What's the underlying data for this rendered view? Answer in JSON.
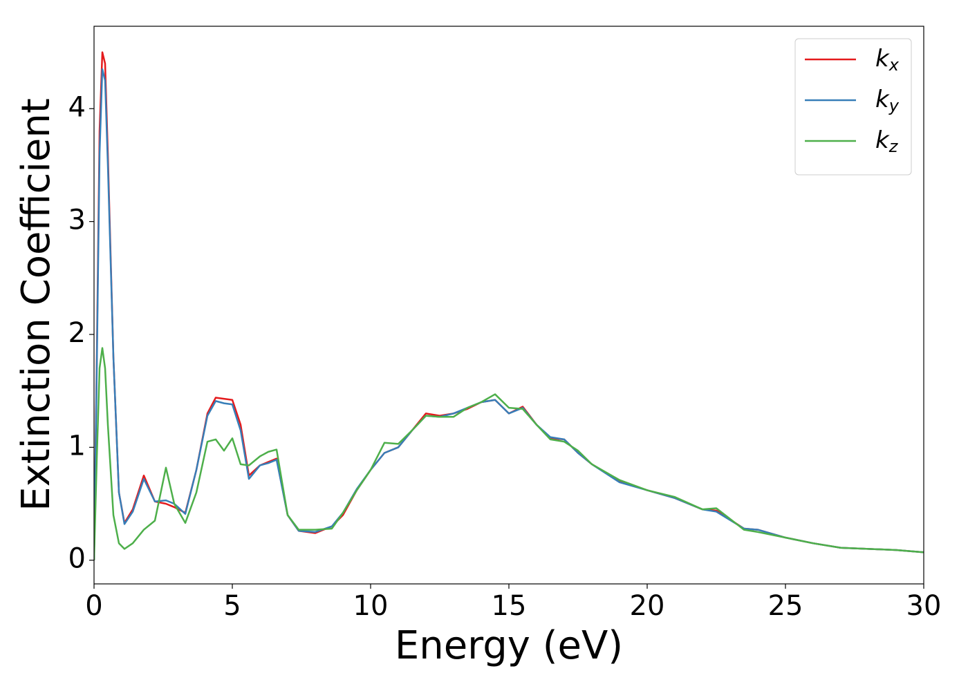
{
  "chart_data": {
    "type": "line",
    "xlabel": "Energy (eV)",
    "ylabel": "Extinction Coefficient",
    "x": [
      0,
      0.1,
      0.2,
      0.3,
      0.4,
      0.5,
      0.7,
      0.9,
      1.1,
      1.4,
      1.8,
      2.2,
      2.6,
      2.9,
      3.3,
      3.7,
      4.1,
      4.4,
      4.7,
      5.0,
      5.3,
      5.6,
      6.0,
      6.3,
      6.6,
      7.0,
      7.4,
      8.0,
      8.6,
      9.0,
      9.5,
      10.0,
      10.5,
      11.0,
      11.5,
      12.0,
      12.5,
      13.0,
      13.5,
      14.0,
      14.5,
      15.0,
      15.5,
      16.0,
      16.5,
      17.0,
      17.5,
      18.0,
      19.0,
      20.0,
      21.0,
      22.0,
      22.5,
      23.5,
      24.0,
      25.0,
      26.0,
      27.0,
      28.0,
      29.0,
      30.0
    ],
    "series": [
      {
        "name": "kx",
        "color": "#e41a1c",
        "values": [
          0,
          1.8,
          3.8,
          4.5,
          4.4,
          3.6,
          1.8,
          0.6,
          0.33,
          0.45,
          0.75,
          0.52,
          0.5,
          0.47,
          0.42,
          0.8,
          1.3,
          1.44,
          1.43,
          1.42,
          1.2,
          0.75,
          0.84,
          0.87,
          0.9,
          0.4,
          0.26,
          0.24,
          0.3,
          0.4,
          0.62,
          0.8,
          0.95,
          1.0,
          1.15,
          1.3,
          1.28,
          1.3,
          1.34,
          1.4,
          1.42,
          1.3,
          1.36,
          1.2,
          1.08,
          1.07,
          0.95,
          0.85,
          0.7,
          0.62,
          0.55,
          0.45,
          0.44,
          0.28,
          0.27,
          0.2,
          0.15,
          0.11,
          0.1,
          0.09,
          0.07
        ]
      },
      {
        "name": "ky",
        "color": "#377eb8",
        "values": [
          0,
          1.7,
          3.6,
          4.35,
          4.25,
          3.5,
          1.8,
          0.6,
          0.32,
          0.43,
          0.72,
          0.52,
          0.53,
          0.5,
          0.41,
          0.8,
          1.28,
          1.41,
          1.39,
          1.38,
          1.15,
          0.72,
          0.84,
          0.86,
          0.89,
          0.4,
          0.26,
          0.25,
          0.3,
          0.42,
          0.63,
          0.8,
          0.95,
          1.0,
          1.15,
          1.28,
          1.27,
          1.3,
          1.35,
          1.4,
          1.42,
          1.3,
          1.35,
          1.2,
          1.09,
          1.07,
          0.95,
          0.85,
          0.69,
          0.62,
          0.55,
          0.45,
          0.43,
          0.28,
          0.27,
          0.2,
          0.15,
          0.11,
          0.1,
          0.09,
          0.07
        ]
      },
      {
        "name": "kz",
        "color": "#4daf4a",
        "values": [
          0,
          0.9,
          1.7,
          1.88,
          1.7,
          1.2,
          0.4,
          0.15,
          0.1,
          0.15,
          0.27,
          0.35,
          0.82,
          0.5,
          0.33,
          0.6,
          1.05,
          1.07,
          0.97,
          1.08,
          0.85,
          0.84,
          0.92,
          0.96,
          0.98,
          0.4,
          0.27,
          0.27,
          0.28,
          0.42,
          0.62,
          0.8,
          1.04,
          1.03,
          1.15,
          1.28,
          1.27,
          1.27,
          1.35,
          1.4,
          1.47,
          1.35,
          1.34,
          1.2,
          1.07,
          1.05,
          0.97,
          0.85,
          0.71,
          0.62,
          0.56,
          0.45,
          0.46,
          0.27,
          0.25,
          0.2,
          0.15,
          0.11,
          0.1,
          0.09,
          0.07
        ]
      }
    ],
    "xlim": [
      0,
      30
    ],
    "xticks": [
      0,
      5,
      10,
      15,
      20,
      25,
      30
    ],
    "ylim": [
      -0.21,
      4.73
    ],
    "yticks": [
      0,
      1,
      2,
      3,
      4
    ],
    "grid": false,
    "legend": "upper right"
  }
}
